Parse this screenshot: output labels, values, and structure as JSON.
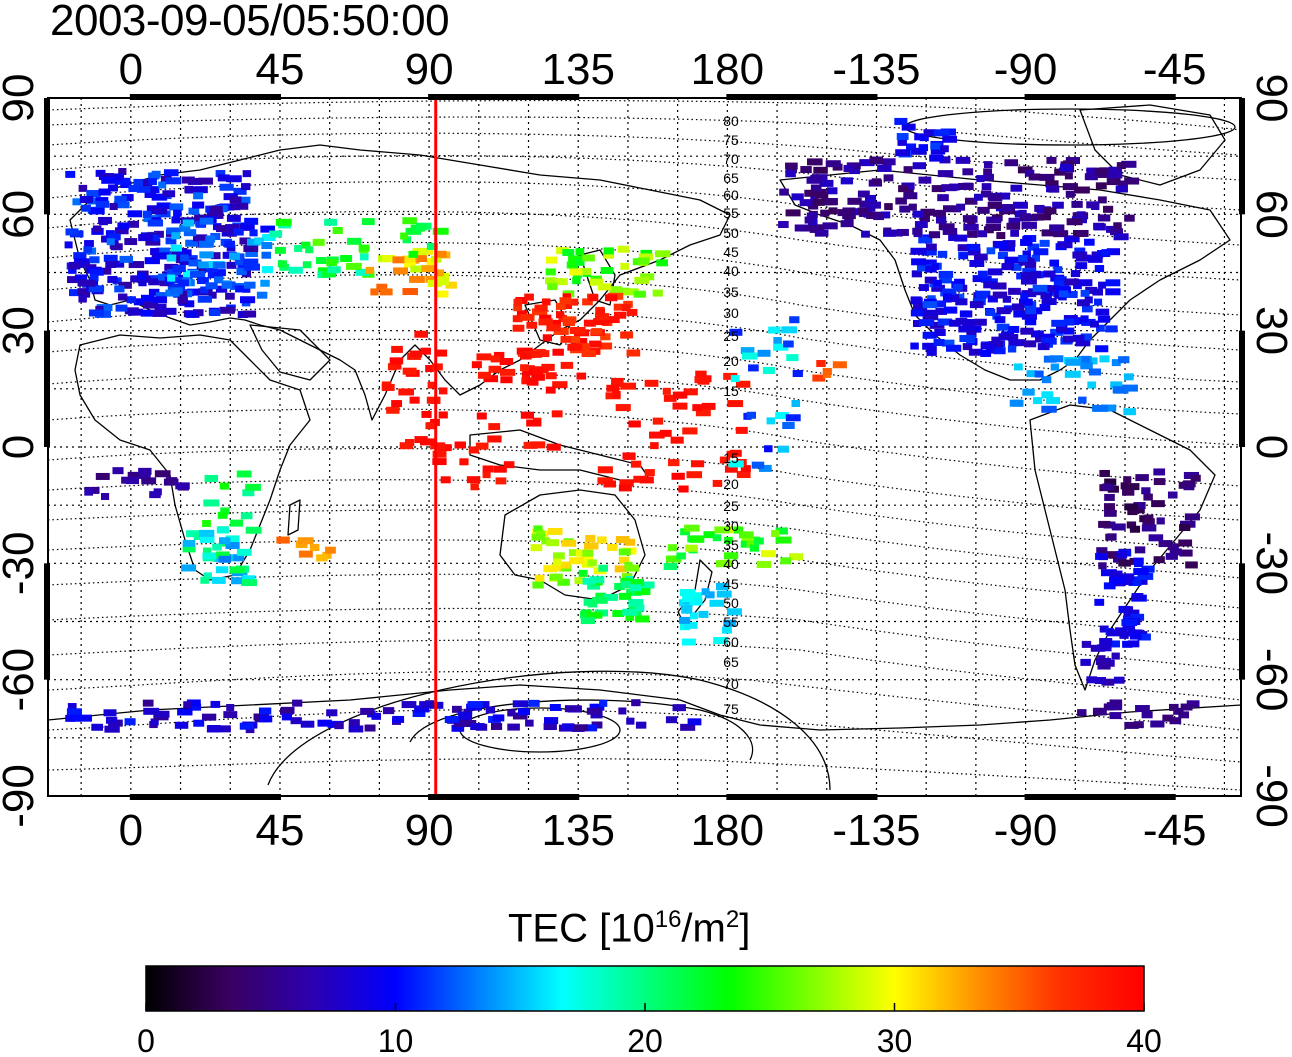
{
  "title": "2003-09-05/05:50:00",
  "map": {
    "top_ticks": [
      "0",
      "45",
      "90",
      "135",
      "180",
      "-135",
      "-90",
      "-45"
    ],
    "bottom_ticks": [
      "0",
      "45",
      "90",
      "135",
      "180",
      "-135",
      "-90",
      "-45"
    ],
    "left_ticks": [
      "90",
      "60",
      "30",
      "0",
      "-30",
      "-60",
      "-90"
    ],
    "right_ticks": [
      "90",
      "60",
      "30",
      "0",
      "-30",
      "-60",
      "-90"
    ],
    "marker_longitude": 92,
    "marker_color": "#ff0000",
    "northern_contour_labels": [
      "80",
      "75",
      "70",
      "65",
      "60",
      "55",
      "50",
      "45",
      "40",
      "35",
      "30",
      "25",
      "20",
      "15"
    ],
    "southern_contour_labels": [
      "15",
      "20",
      "25",
      "30",
      "35",
      "40",
      "45",
      "50",
      "55",
      "60",
      "65",
      "70",
      "75"
    ]
  },
  "colorbar": {
    "label_main": "TEC  [10",
    "label_sup1": "16",
    "label_mid": "/m",
    "label_sup2": "2",
    "label_end": "]",
    "ticks": [
      "0",
      "10",
      "20",
      "30",
      "40"
    ],
    "min": 0,
    "max": 40,
    "colors": [
      "#000000",
      "#3a0060",
      "#2c00b0",
      "#0000ff",
      "#0080ff",
      "#00ffff",
      "#00ff80",
      "#00ff00",
      "#80ff00",
      "#ffff00",
      "#ff9000",
      "#ff3000",
      "#ff0000"
    ]
  }
}
